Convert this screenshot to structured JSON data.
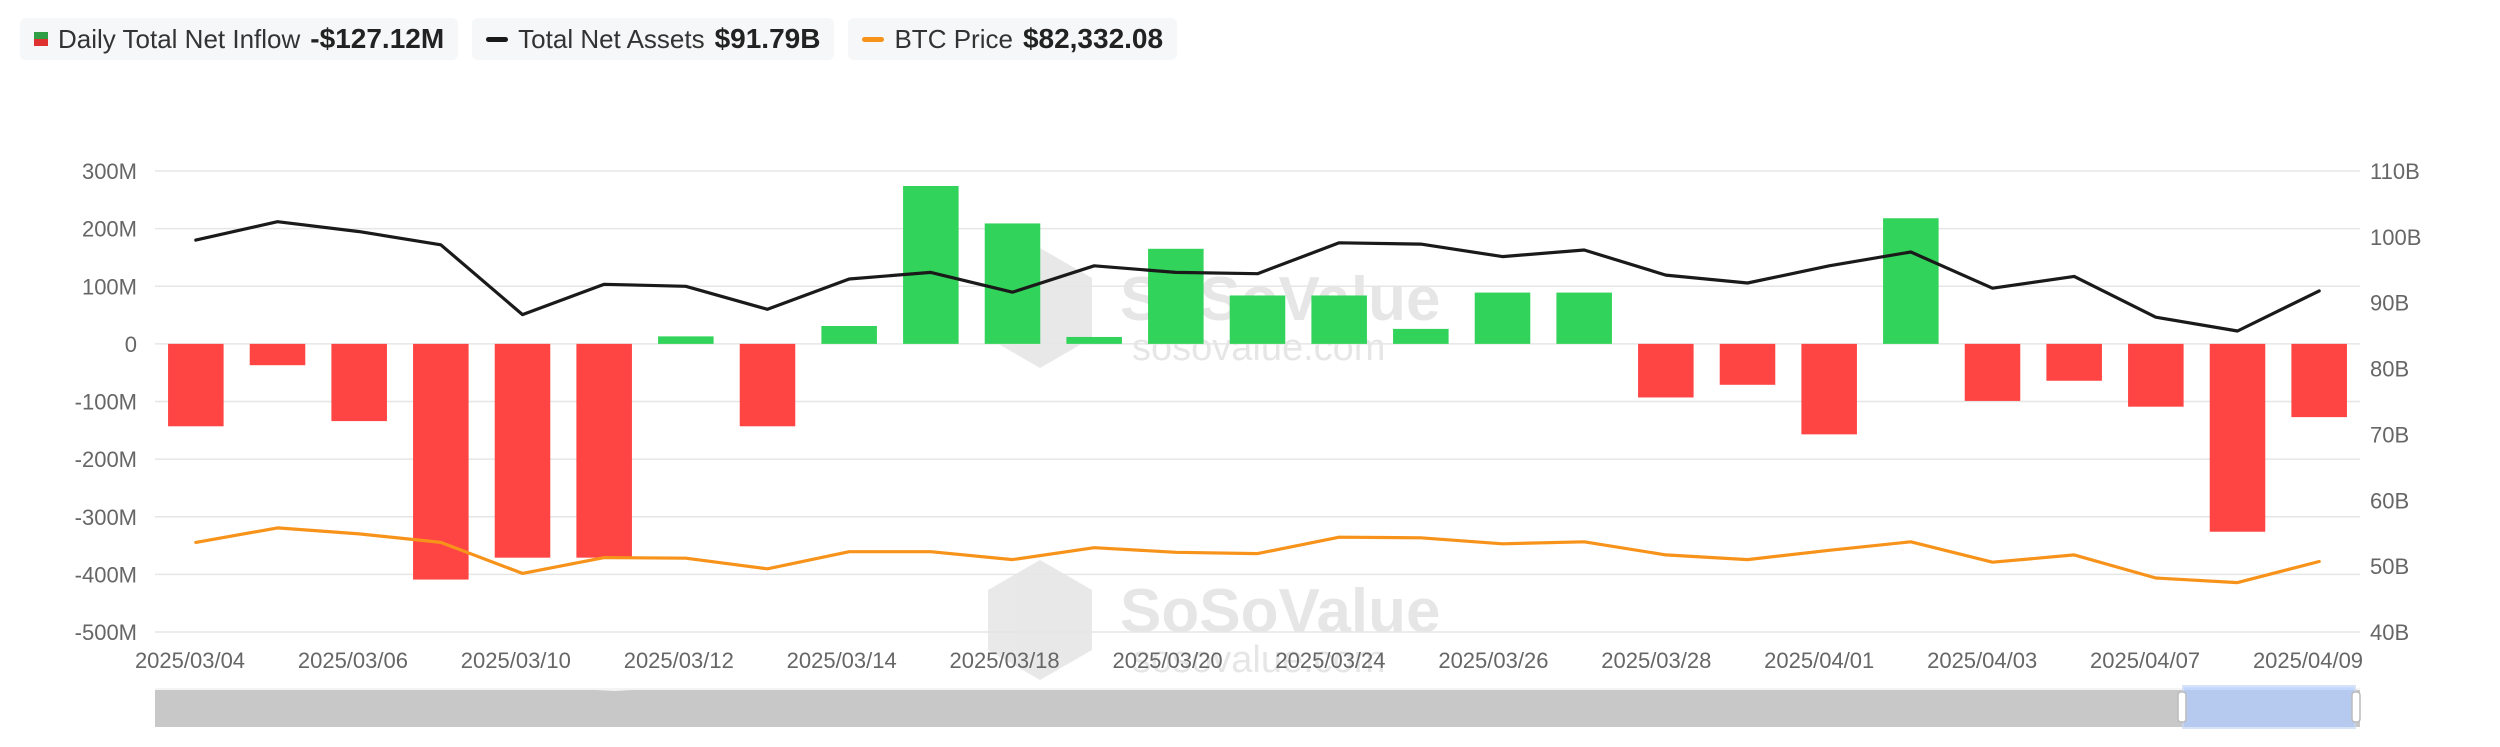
{
  "legend": {
    "inflow": {
      "label": "Daily Total Net Inflow",
      "value": "-$127.12M"
    },
    "assets": {
      "label": "Total Net Assets",
      "value": "$91.79B"
    },
    "btc": {
      "label": "BTC Price",
      "value": "$82,332.08"
    }
  },
  "colors": {
    "positive": "#32d35a",
    "negative": "#ff4444",
    "assets_line": "#1a1a1a",
    "btc_line": "#f7931a",
    "grid": "#e6e6e6",
    "axis_text": "#666666",
    "navigator_fill": "#c8c8c8",
    "navigator_selection": "#aecbff"
  },
  "watermark": {
    "brand": "SoSoValue",
    "url": "sosovalue.com"
  },
  "chart_data": {
    "type": "bar",
    "x_tick_labels": [
      "2025/03/04",
      "2025/03/06",
      "2025/03/10",
      "2025/03/12",
      "2025/03/14",
      "2025/03/18",
      "2025/03/20",
      "2025/03/24",
      "2025/03/26",
      "2025/03/28",
      "2025/04/01",
      "2025/04/03",
      "2025/04/07",
      "2025/04/09"
    ],
    "left_axis": {
      "ticks": [
        "300M",
        "200M",
        "100M",
        "0",
        "-100M",
        "-200M",
        "-300M",
        "-400M",
        "-500M"
      ],
      "range": [
        -500,
        300
      ],
      "unit": "M"
    },
    "right_axis": {
      "ticks": [
        "110B",
        "100B",
        "90B",
        "80B",
        "70B",
        "60B",
        "50B",
        "40B"
      ],
      "range": [
        40,
        110
      ],
      "unit": "B"
    },
    "grid": true,
    "categories": [
      "2025/03/04",
      "2025/03/05",
      "2025/03/06",
      "2025/03/07",
      "2025/03/10",
      "2025/03/11",
      "2025/03/12",
      "2025/03/13",
      "2025/03/14",
      "2025/03/17",
      "2025/03/18",
      "2025/03/19",
      "2025/03/20",
      "2025/03/21",
      "2025/03/24",
      "2025/03/25",
      "2025/03/26",
      "2025/03/27",
      "2025/03/28",
      "2025/03/31",
      "2025/04/01",
      "2025/04/02",
      "2025/04/03",
      "2025/04/04",
      "2025/04/07",
      "2025/04/08",
      "2025/04/09"
    ],
    "series": [
      {
        "name": "Daily Total Net Inflow",
        "type": "bar",
        "axis": "left",
        "values": [
          -143,
          -37,
          -134,
          -409,
          -371,
          -371,
          13,
          -143,
          31,
          274,
          209,
          12,
          165,
          84,
          84,
          26,
          89,
          89,
          -93,
          -71,
          -157,
          218,
          -99,
          -64,
          -109,
          -326,
          -127.12
        ]
      },
      {
        "name": "Total Net Assets",
        "type": "line",
        "axis": "right",
        "values": [
          99.5,
          102.3,
          100.8,
          98.8,
          88.2,
          92.8,
          92.5,
          89.0,
          93.6,
          94.6,
          91.6,
          95.6,
          94.6,
          94.4,
          99.1,
          98.9,
          97.0,
          98.0,
          94.2,
          93.0,
          95.6,
          97.7,
          92.2,
          94.0,
          87.8,
          85.7,
          91.79
        ]
      },
      {
        "name": "BTC Price",
        "type": "line",
        "axis": "right",
        "values": [
          53.6,
          55.8,
          54.9,
          53.6,
          48.9,
          51.3,
          51.2,
          49.6,
          52.2,
          52.2,
          51.0,
          52.8,
          52.1,
          51.9,
          54.4,
          54.3,
          53.4,
          53.7,
          51.7,
          51.0,
          52.4,
          53.7,
          50.6,
          51.7,
          48.2,
          47.5,
          50.7
        ]
      }
    ]
  }
}
